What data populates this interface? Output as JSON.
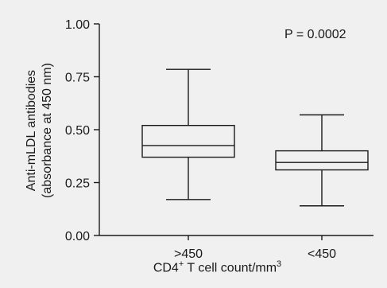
{
  "chart_data": {
    "type": "boxplot",
    "ylabel_line1": "Anti-mLDL antibodies",
    "ylabel_line2": "(absorbance at 450 nm)",
    "xlabel_main": "CD4",
    "xlabel_sup1": "+",
    "xlabel_rest": " T cell count/mm",
    "xlabel_sup2": "3",
    "annotation": "P = 0.0002",
    "ylim": [
      0,
      1
    ],
    "yticks": [
      "0.00",
      "0.25",
      "0.50",
      "0.75",
      "1.00"
    ],
    "ytick_values": [
      0,
      0.25,
      0.5,
      0.75,
      1.0
    ],
    "categories": [
      ">450",
      "<450"
    ],
    "boxes": [
      {
        "category": ">450",
        "min": 0.17,
        "q1": 0.37,
        "median": 0.425,
        "q3": 0.52,
        "max": 0.785
      },
      {
        "category": "<450",
        "min": 0.14,
        "q1": 0.31,
        "median": 0.345,
        "q3": 0.4,
        "max": 0.57
      }
    ],
    "grid": false,
    "colors": {
      "background": "#f0f0f0",
      "ink": "#1a1a1a"
    }
  }
}
